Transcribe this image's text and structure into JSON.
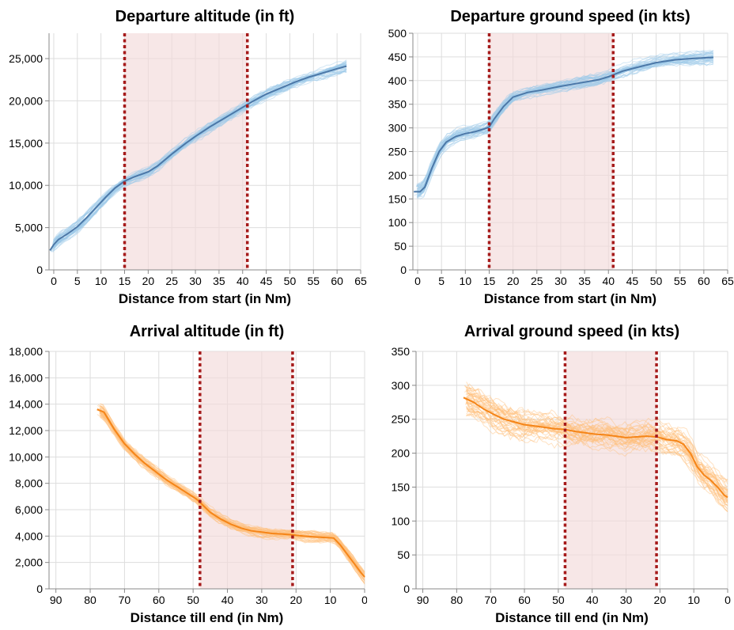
{
  "chart_data": [
    {
      "type": "line",
      "title": "Departure altitude (in ft)",
      "xlabel": "Distance from start (in Nm)",
      "ylabel": "",
      "x_reversed": false,
      "xlim": [
        -1,
        65
      ],
      "ylim": [
        0,
        28000
      ],
      "xticks": [
        0,
        5,
        10,
        15,
        20,
        25,
        30,
        35,
        40,
        45,
        50,
        55,
        60,
        65
      ],
      "yticks": [
        0,
        5000,
        10000,
        15000,
        20000,
        25000
      ],
      "band": [
        15,
        41
      ],
      "vlines": [
        15,
        41
      ],
      "color": "#4c78a8",
      "spread_color": "#9ecae9",
      "grid": true,
      "spread": 1.0,
      "series": [
        {
          "x": [
            -0.8,
            0,
            1,
            3,
            5,
            7,
            9,
            11,
            13,
            15,
            17,
            20,
            22,
            25,
            28,
            30,
            33,
            36,
            39,
            42,
            45,
            48,
            51,
            54,
            57,
            60,
            62
          ],
          "y": [
            2300,
            3000,
            3600,
            4300,
            5100,
            6200,
            7400,
            8600,
            9700,
            10500,
            11000,
            11600,
            12300,
            13700,
            15000,
            15800,
            16900,
            17900,
            18900,
            19900,
            20800,
            21500,
            22200,
            22800,
            23300,
            23800,
            24100
          ]
        }
      ]
    },
    {
      "type": "line",
      "title": "Departure ground speed (in kts)",
      "xlabel": "Distance from start (in Nm)",
      "ylabel": "",
      "x_reversed": false,
      "xlim": [
        -1,
        65
      ],
      "ylim": [
        0,
        500
      ],
      "xticks": [
        0,
        5,
        10,
        15,
        20,
        25,
        30,
        35,
        40,
        45,
        50,
        55,
        60,
        65
      ],
      "yticks": [
        0,
        50,
        100,
        150,
        200,
        250,
        300,
        350,
        400,
        450,
        500
      ],
      "band": [
        15,
        41
      ],
      "vlines": [
        15,
        41
      ],
      "color": "#4c78a8",
      "spread_color": "#9ecae9",
      "grid": true,
      "spread": 12,
      "series": [
        {
          "x": [
            -0.8,
            0.5,
            1.5,
            3,
            4.5,
            6,
            8,
            10,
            12,
            14,
            15,
            16,
            18,
            20,
            23,
            26,
            30,
            34,
            38,
            40,
            41,
            43,
            46,
            50,
            54,
            58,
            62
          ],
          "y": [
            165,
            165,
            175,
            215,
            250,
            270,
            282,
            288,
            292,
            298,
            302,
            318,
            345,
            365,
            375,
            380,
            388,
            395,
            402,
            408,
            412,
            420,
            428,
            438,
            444,
            447,
            449
          ]
        }
      ]
    },
    {
      "type": "line",
      "title": "Arrival altitude (in ft)",
      "xlabel": "Distance till end (in Nm)",
      "ylabel": "",
      "x_reversed": true,
      "xlim": [
        92,
        0
      ],
      "ylim": [
        0,
        18000
      ],
      "xticks": [
        90,
        80,
        70,
        60,
        50,
        40,
        30,
        20,
        10,
        0
      ],
      "yticks": [
        0,
        2000,
        4000,
        6000,
        8000,
        10000,
        12000,
        14000,
        16000,
        18000
      ],
      "band": [
        48,
        21
      ],
      "vlines": [
        48,
        21
      ],
      "color": "#f58518",
      "spread_color": "#ffbf79",
      "grid": true,
      "spread": 1.0,
      "series": [
        {
          "x": [
            78,
            76,
            73,
            70,
            67,
            64,
            61,
            58,
            55,
            52,
            49,
            47,
            45,
            42,
            39,
            36,
            33,
            30,
            27,
            24,
            21,
            18,
            15,
            12,
            9,
            7,
            5,
            3,
            1,
            0
          ],
          "y": [
            13600,
            13400,
            12100,
            11000,
            10200,
            9500,
            8900,
            8300,
            7800,
            7300,
            6800,
            6300,
            5800,
            5300,
            4900,
            4600,
            4400,
            4300,
            4200,
            4150,
            4100,
            4000,
            3950,
            3900,
            3850,
            3300,
            2600,
            1900,
            1200,
            900
          ]
        }
      ]
    },
    {
      "type": "line",
      "title": "Arrival ground speed (in kts)",
      "xlabel": "Distance till end (in Nm)",
      "ylabel": "",
      "x_reversed": true,
      "xlim": [
        92,
        0
      ],
      "ylim": [
        0,
        350
      ],
      "xticks": [
        90,
        80,
        70,
        60,
        50,
        40,
        30,
        20,
        10,
        0
      ],
      "yticks": [
        0,
        50,
        100,
        150,
        200,
        250,
        300,
        350
      ],
      "band": [
        48,
        21
      ],
      "vlines": [
        48,
        21
      ],
      "color": "#f58518",
      "spread_color": "#ffbf79",
      "grid": true,
      "spread": 18,
      "series": [
        {
          "x": [
            78,
            75,
            72,
            69,
            66,
            63,
            60,
            57,
            54,
            51,
            48,
            45,
            42,
            39,
            36,
            33,
            30,
            27,
            24,
            21,
            18,
            15,
            13,
            11,
            9,
            7,
            5,
            3,
            1,
            0
          ],
          "y": [
            282,
            275,
            265,
            257,
            250,
            246,
            242,
            240,
            238,
            236,
            235,
            232,
            230,
            228,
            227,
            225,
            223,
            224,
            225,
            224,
            220,
            218,
            213,
            200,
            180,
            168,
            160,
            150,
            138,
            135
          ]
        }
      ]
    }
  ]
}
